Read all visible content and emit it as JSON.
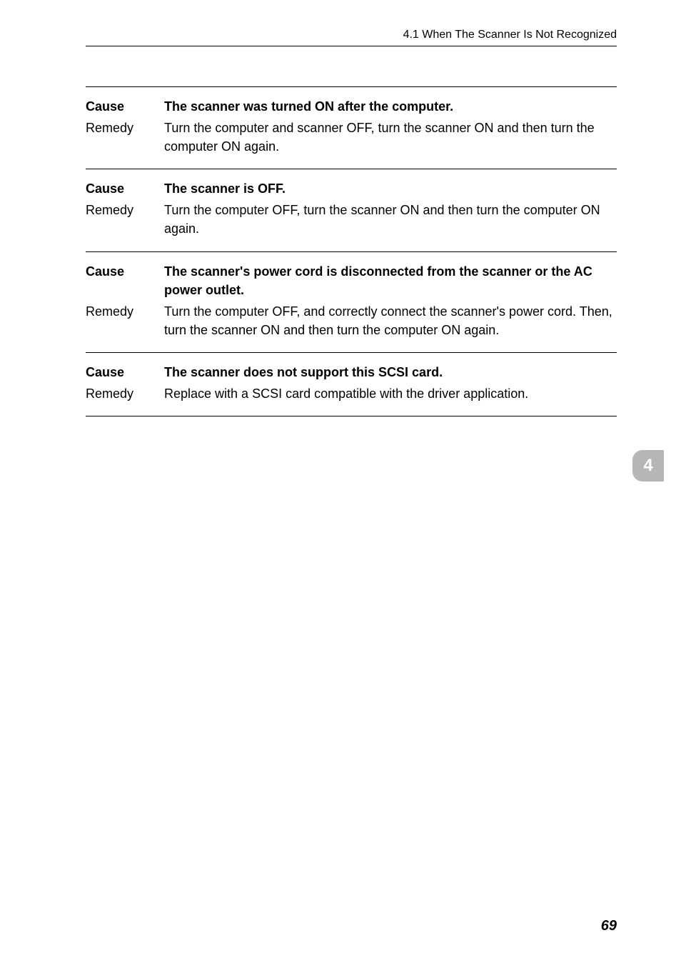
{
  "header": {
    "text": "4.1   When The Scanner Is Not Recognized"
  },
  "sections": [
    {
      "rows": [
        {
          "label": "Cause",
          "labelBold": true,
          "content": "The scanner was turned ON after the computer.",
          "contentBold": true
        },
        {
          "label": "Remedy",
          "labelBold": false,
          "content": "Turn the computer and scanner OFF, turn the scanner ON and then turn the computer ON again.",
          "contentBold": false
        }
      ]
    },
    {
      "rows": [
        {
          "label": "Cause",
          "labelBold": true,
          "content": "The scanner is OFF.",
          "contentBold": true
        },
        {
          "label": "Remedy",
          "labelBold": false,
          "content": "Turn the computer OFF, turn the scanner ON and then turn the computer ON again.",
          "contentBold": false
        }
      ]
    },
    {
      "rows": [
        {
          "label": "Cause",
          "labelBold": true,
          "content": "The scanner's power cord is disconnected from the scanner or the AC power outlet.",
          "contentBold": true
        },
        {
          "label": "Remedy",
          "labelBold": false,
          "content": "Turn the computer OFF, and correctly connect the scanner's power cord. Then, turn the scanner ON and then turn the computer ON again.",
          "contentBold": false
        }
      ]
    },
    {
      "rows": [
        {
          "label": "Cause",
          "labelBold": true,
          "content": "The scanner does not support this SCSI card.",
          "contentBold": true
        },
        {
          "label": "Remedy",
          "labelBold": false,
          "content": "Replace with a SCSI card compatible with the driver application.",
          "contentBold": false
        }
      ]
    }
  ],
  "tab": {
    "number": "4",
    "bgColor": "#b6b6b6",
    "textColor": "#ffffff"
  },
  "pageNumber": "69"
}
